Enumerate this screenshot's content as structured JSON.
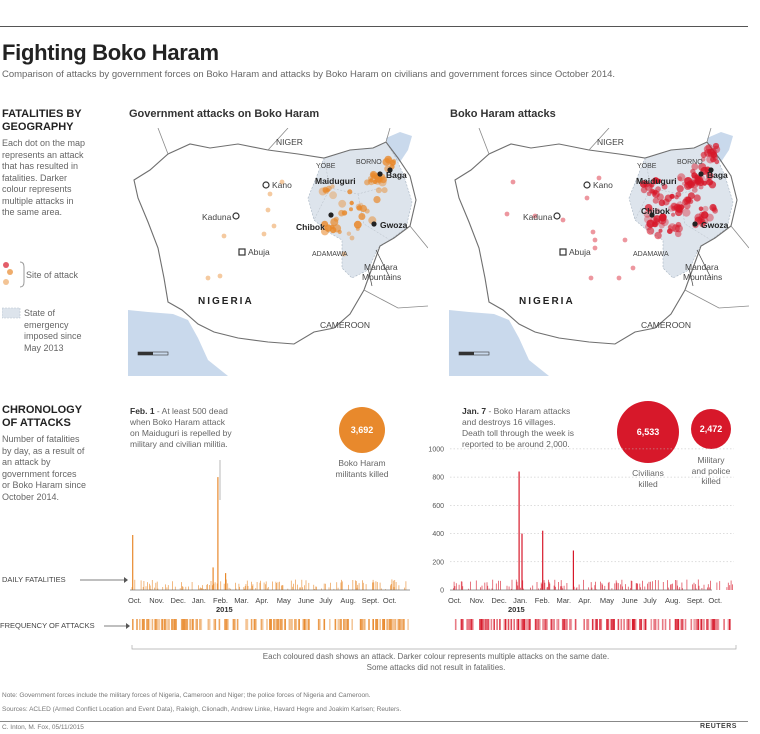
{
  "title": "Fighting Boko Haram",
  "subtitle": "Comparison of attacks by government forces on Boko Haram and attacks by Boko Haram on civilians and government forces since October 2014.",
  "geo": {
    "heading_line1": "FATALITIES BY",
    "heading_line2": "GEOGRAPHY",
    "desc": [
      "Each dot on the map",
      "represents an attack",
      "that has resulted in",
      "fatalities. Darker",
      "colour represents",
      "multiple attacks in",
      "the same area."
    ],
    "legend_site": "Site of attack",
    "legend_state": [
      "State of",
      "emergency",
      "imposed since",
      "May 2013"
    ]
  },
  "maps": {
    "left_title": "Government attacks on Boko Haram",
    "right_title": "Boko Haram attacks",
    "labels": {
      "niger": "NIGER",
      "yobe": "YOBE",
      "borno": "BORNO",
      "maiduguri": "Maiduguri",
      "baga": "Baga",
      "kano": "Kano",
      "kaduna": "Kaduna",
      "abuja": "Abuja",
      "chibok": "Chibok",
      "gwoza": "Gwoza",
      "adamawa": "ADAMAWA",
      "nigeria": "NIGERIA",
      "cameroon": "CAMEROON",
      "mandara": [
        "Mandara",
        "Mountains"
      ]
    },
    "colors": {
      "gov": "#e8892c",
      "bh": "#d7182a",
      "water": "#c9d9ec",
      "state": "#dde4ec"
    }
  },
  "chrono": {
    "heading_line1": "CHRONOLOGY",
    "heading_line2": "OF ATTACKS",
    "desc": [
      "Number of fatalities",
      "by day, as a result of",
      "an attack by",
      "government forces",
      "or Boko Haram since",
      "October 2014."
    ],
    "daily_label": "DAILY FATALITIES",
    "freq_label": "FREQUENCY OF ATTACKS",
    "left_annot_date": "Feb. 1",
    "left_annot": [
      " - At least 500 dead",
      "when Boko Haram attack",
      "on Maiduguri is repelled by",
      "military and civilian militia."
    ],
    "right_annot_date": "Jan. 7",
    "right_annot": [
      " - Boko Haram attacks",
      "and destroys 16 villages.",
      "Death toll through the week is",
      "reported to be around 2,000."
    ],
    "militants_killed": {
      "value": "3,692",
      "label": [
        "Boko Haram",
        "militants killed"
      ]
    },
    "civilians_killed": {
      "value": "6,533",
      "label": [
        "Civilians",
        "killed"
      ]
    },
    "military_killed": {
      "value": "2,472",
      "label": [
        "Military",
        "and police",
        "killed"
      ]
    },
    "months": [
      "Oct.",
      "Nov.",
      "Dec.",
      "Jan.",
      "Feb.",
      "Mar.",
      "Apr.",
      "May",
      "June",
      "July",
      "Aug.",
      "Sept.",
      "Oct."
    ],
    "year": "2015",
    "ticks": [
      "0",
      "200",
      "400",
      "600",
      "800",
      "1000"
    ],
    "note_line1": "Each coloured dash shows an attack. Darker colour represents multiple attacks on the same date.",
    "note_line2": "Some attacks did not result in fatalities."
  },
  "chart_data": [
    {
      "type": "bar",
      "title": "",
      "ylim": [
        0,
        1000
      ],
      "color": "#e8892c",
      "x_range": [
        "Oct. 2014",
        "Oct. 2015"
      ],
      "peaks": [
        {
          "date": "2014-10-02",
          "value": 390
        },
        {
          "date": "2015-01-25",
          "value": 160
        },
        {
          "date": "2015-02-01",
          "value": 800
        },
        {
          "date": "2015-02-12",
          "value": 120
        }
      ]
    },
    {
      "type": "bar",
      "title": "",
      "ylim": [
        0,
        1000
      ],
      "color": "#d7182a",
      "x_range": [
        "Oct. 2014",
        "Oct. 2015"
      ],
      "peaks": [
        {
          "date": "2015-01-03",
          "value": 840
        },
        {
          "date": "2015-01-07",
          "value": 400
        },
        {
          "date": "2015-02-05",
          "value": 420
        },
        {
          "date": "2015-03-20",
          "value": 280
        }
      ]
    }
  ],
  "notes": {
    "note": "Note: Government forces include the  military forces of Nigeria, Cameroon and Niger; the police forces of Nigeria and Cameroon.",
    "sources": "Sources: ACLED (Armed Conflict Location and Event Data), Raleigh, Clionadh, Andrew Linke, Havard Hegre and Joakim Karlsen; Reuters.",
    "credit": "C. Inton, M. Fox, 05/11/2015",
    "logo": "REUTERS"
  }
}
